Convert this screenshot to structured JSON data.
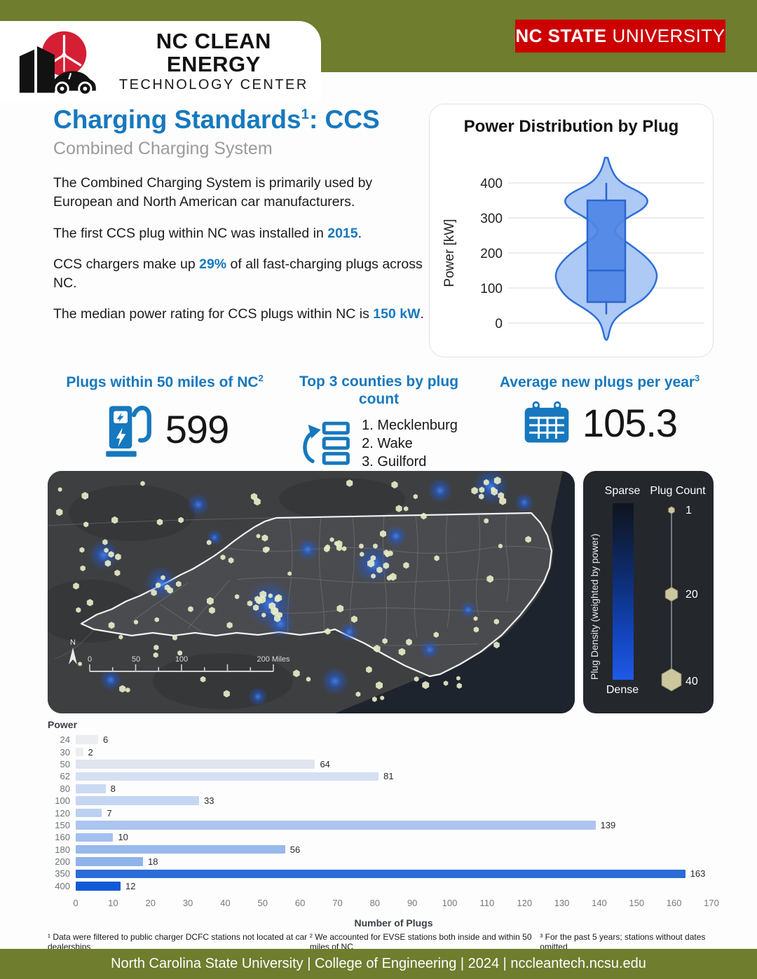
{
  "header": {
    "logo_line1": "NC CLEAN ENERGY",
    "logo_line2": "TECHNOLOGY CENTER",
    "badge_bold": "NC STATE",
    "badge_rest": "UNIVERSITY"
  },
  "title": {
    "text": "Charging Standards",
    "sup": "1",
    "tail": ": CCS",
    "subtitle": "Combined Charging System"
  },
  "intro": {
    "p1": "The Combined Charging System is primarily used by European and North American car manufacturers.",
    "p2_prefix": "The first CCS plug within NC was installed in ",
    "p2_highlight": "2015",
    "p2_suffix": ".",
    "p3_prefix": "CCS chargers make up ",
    "p3_highlight": "29%",
    "p3_suffix": " of all fast-charging plugs across NC.",
    "p4_prefix": "The median power rating for CCS plugs within NC is ",
    "p4_highlight": "150 kW",
    "p4_suffix": "."
  },
  "stats": {
    "plugs": {
      "label": "Plugs within 50 miles of NC",
      "sup": "2",
      "value": "599"
    },
    "counties": {
      "label": "Top 3 counties by plug count",
      "sup": "",
      "items": [
        "1. Mecklenburg",
        "2. Wake",
        "3. Guilford"
      ]
    },
    "newplugs": {
      "label": "Average new plugs per year",
      "sup": "3",
      "value": "105.3"
    }
  },
  "map": {
    "north_label": "N",
    "scale_ticks": [
      "0",
      "50",
      "100"
    ],
    "scale_end": "200 Miles",
    "legend": {
      "sparse": "Sparse",
      "dense": "Dense",
      "density_axis": "Plug Density (weighted by power)",
      "count_title": "Plug Count",
      "count_sizes": [
        "1",
        "20",
        "40"
      ]
    }
  },
  "chart_data": [
    {
      "type": "violin",
      "title": "Power Distribution by Plug",
      "ylabel": "Power [kW]",
      "yticks": [
        400,
        300,
        200,
        100,
        0
      ],
      "ylim": [
        -50,
        480
      ],
      "summary": {
        "median_kw": 150,
        "q1_kw": 60,
        "q3_kw": 350,
        "whisker_low_kw": 25,
        "whisker_high_kw": 400,
        "modes_kw": [
          350,
          130
        ]
      },
      "profile_kw_halfwidth": [
        [
          472,
          2
        ],
        [
          435,
          7
        ],
        [
          400,
          20
        ],
        [
          372,
          50
        ],
        [
          350,
          61
        ],
        [
          326,
          53
        ],
        [
          300,
          29
        ],
        [
          276,
          14
        ],
        [
          258,
          12
        ],
        [
          247,
          17
        ],
        [
          232,
          28
        ],
        [
          212,
          42
        ],
        [
          188,
          57
        ],
        [
          163,
          68
        ],
        [
          138,
          73
        ],
        [
          112,
          70
        ],
        [
          92,
          64
        ],
        [
          78,
          58
        ],
        [
          64,
          50
        ],
        [
          45,
          34
        ],
        [
          26,
          20
        ],
        [
          6,
          10
        ],
        [
          -18,
          5
        ],
        [
          -48,
          2
        ]
      ]
    },
    {
      "type": "bar",
      "orientation": "horizontal",
      "title": "Power",
      "ylabel": "Power",
      "xlabel": "Number of Plugs",
      "categories": [
        "24",
        "30",
        "50",
        "62",
        "80",
        "100",
        "120",
        "150",
        "160",
        "180",
        "200",
        "350",
        "400"
      ],
      "values": [
        6,
        2,
        64,
        81,
        8,
        33,
        7,
        139,
        10,
        56,
        18,
        163,
        12
      ],
      "colors": [
        "#ebedf0",
        "#ebedf0",
        "#dfe4ee",
        "#d4e0f4",
        "#cbdaf3",
        "#c4d6f2",
        "#bcd1f1",
        "#abc5ef",
        "#a3c0ee",
        "#97b9ec",
        "#8fb3ea",
        "#2a6bd6",
        "#115ad6"
      ],
      "xlim": [
        0,
        170
      ],
      "xticks": [
        0,
        10,
        20,
        30,
        40,
        50,
        60,
        70,
        80,
        90,
        100,
        110,
        120,
        130,
        140,
        150,
        160,
        170
      ]
    }
  ],
  "footnotes": [
    "¹ Data were filtered to public charger DCFC stations not located at car dealerships",
    "² We accounted for EVSE stations both inside and within 50 miles of NC",
    "³ For the past 5 years; stations without dates omitted"
  ],
  "footer": "North Carolina State University | College of Engineering | 2024 | nccleantech.ncsu.edu",
  "colors": {
    "accent_blue": "#1778be",
    "band_green": "#6e7d2e",
    "badge_red": "#cc0000",
    "logo_red": "#d51f35",
    "violin_fill": "#a9c6f4",
    "violin_stroke": "#2e6fd7",
    "box_fill": "#4f86e6",
    "box_stroke": "#2a66cf",
    "map_dot": "#e7ebc6",
    "glow_blue": "#1d5ce0",
    "legend_hex": "#ccc79e"
  }
}
